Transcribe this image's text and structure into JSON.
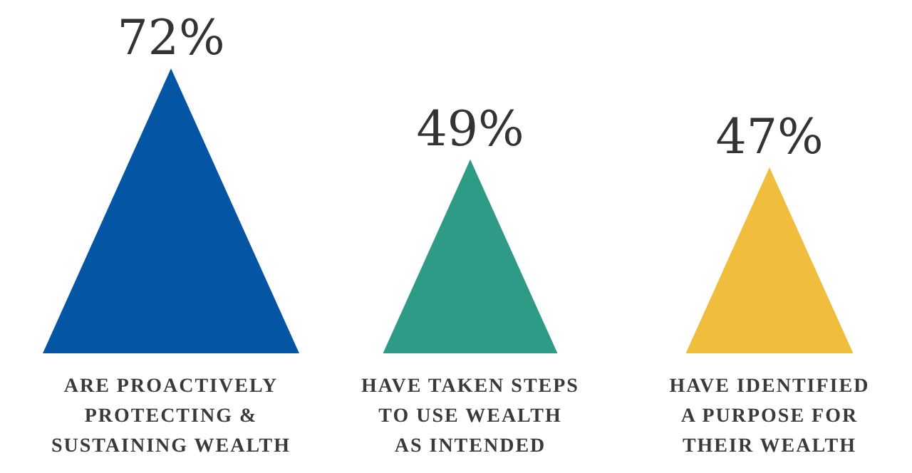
{
  "chart_data": {
    "type": "bar",
    "categories": [
      "ARE PROACTIVELY PROTECTING & SUSTAINING WEALTH",
      "HAVE TAKEN STEPS TO USE WEALTH AS INTENDED",
      "HAVE IDENTIFIED A PURPOSE FOR THEIR WEALTH"
    ],
    "values": [
      72,
      49,
      47
    ],
    "colors": [
      "#0455a4",
      "#2e9b87",
      "#f0bd3c"
    ],
    "value_labels": [
      "72%",
      "49%",
      "47%"
    ]
  }
}
